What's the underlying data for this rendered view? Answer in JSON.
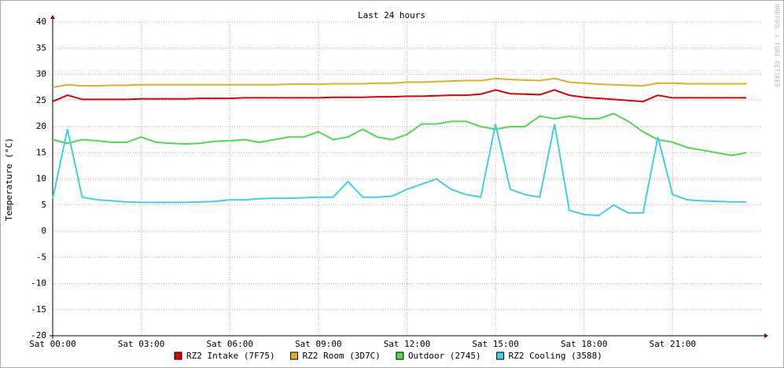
{
  "chart_data": {
    "type": "line",
    "title": "Last 24 hours",
    "y_label": "Temperature (°C)",
    "watermark": "RRDTOOL / TOBI OETIKER",
    "x": [
      0,
      0.5,
      1,
      1.5,
      2,
      2.5,
      3,
      3.5,
      4,
      4.5,
      5,
      5.5,
      6,
      6.5,
      7,
      7.5,
      8,
      8.5,
      9,
      9.5,
      10,
      10.5,
      11,
      11.5,
      12,
      12.5,
      13,
      13.5,
      14,
      14.5,
      15,
      15.5,
      16,
      16.5,
      17,
      17.5,
      18,
      18.5,
      19,
      19.5,
      20,
      20.5,
      21,
      21.5,
      22,
      22.5,
      23,
      23.5
    ],
    "xlim": [
      0,
      24
    ],
    "xticks": [
      {
        "value": 0,
        "label": "Sat 00:00"
      },
      {
        "value": 3,
        "label": "Sat 03:00"
      },
      {
        "value": 6,
        "label": "Sat 06:00"
      },
      {
        "value": 9,
        "label": "Sat 09:00"
      },
      {
        "value": 12,
        "label": "Sat 12:00"
      },
      {
        "value": 15,
        "label": "Sat 15:00"
      },
      {
        "value": 18,
        "label": "Sat 18:00"
      },
      {
        "value": 21,
        "label": "Sat 21:00"
      }
    ],
    "ylim": [
      -20,
      40
    ],
    "yticks": [
      -20,
      -15,
      -10,
      -5,
      0,
      5,
      10,
      15,
      20,
      25,
      30,
      35,
      40
    ],
    "grid": true,
    "legend": "bottom",
    "series": [
      {
        "name": "RZ2 Intake (7F75)",
        "color": "#e00000",
        "values": [
          24.8,
          26,
          25.2,
          25.2,
          25.2,
          25.2,
          25.3,
          25.3,
          25.3,
          25.3,
          25.4,
          25.4,
          25.4,
          25.5,
          25.5,
          25.5,
          25.5,
          25.5,
          25.5,
          25.6,
          25.6,
          25.6,
          25.7,
          25.7,
          25.8,
          25.8,
          25.9,
          26,
          26,
          26.2,
          27,
          26.3,
          26.2,
          26.1,
          27,
          26,
          25.6,
          25.4,
          25.2,
          25,
          24.8,
          26,
          25.5,
          25.5,
          25.5,
          25.5,
          25.5,
          25.5
        ]
      },
      {
        "name": "RZ2 Room (3D7C)",
        "color": "#e0b020",
        "values": [
          27.5,
          28,
          27.8,
          27.8,
          27.9,
          27.9,
          28,
          28,
          28,
          28,
          28,
          28,
          28,
          28,
          28,
          28,
          28.1,
          28.1,
          28.1,
          28.2,
          28.2,
          28.2,
          28.3,
          28.3,
          28.5,
          28.5,
          28.6,
          28.7,
          28.8,
          28.8,
          29.2,
          29,
          28.9,
          28.8,
          29.2,
          28.5,
          28.3,
          28.1,
          28,
          27.9,
          27.8,
          28.3,
          28.3,
          28.2,
          28.2,
          28.2,
          28.2,
          28.2
        ]
      },
      {
        "name": "Outdoor (2745)",
        "color": "#50d850",
        "values": [
          17.5,
          16.8,
          17.5,
          17.3,
          17,
          17,
          18,
          17,
          16.8,
          16.7,
          16.8,
          17.2,
          17.3,
          17.5,
          17,
          17.5,
          18,
          18,
          19,
          17.5,
          18,
          19.5,
          18,
          17.5,
          18.5,
          20.5,
          20.5,
          21,
          21,
          20,
          19.5,
          20,
          20,
          22,
          21.5,
          22,
          21.5,
          21.5,
          22.5,
          21,
          19,
          17.5,
          17,
          16,
          15.5,
          15,
          14.5,
          15
        ]
      },
      {
        "name": "RZ2 Cooling (3588)",
        "color": "#40d0e0",
        "values": [
          6.2,
          19.5,
          6.5,
          6,
          5.8,
          5.6,
          5.5,
          5.5,
          5.5,
          5.5,
          5.6,
          5.7,
          6,
          6,
          6.2,
          6.3,
          6.3,
          6.4,
          6.5,
          6.5,
          9.5,
          6.5,
          6.5,
          6.7,
          8,
          9,
          10,
          8,
          7,
          6.5,
          20.5,
          8,
          7,
          6.5,
          20.5,
          4,
          3.2,
          3,
          5,
          3.5,
          3.5,
          18,
          7,
          6,
          5.8,
          5.7,
          5.6,
          5.6
        ]
      }
    ]
  }
}
